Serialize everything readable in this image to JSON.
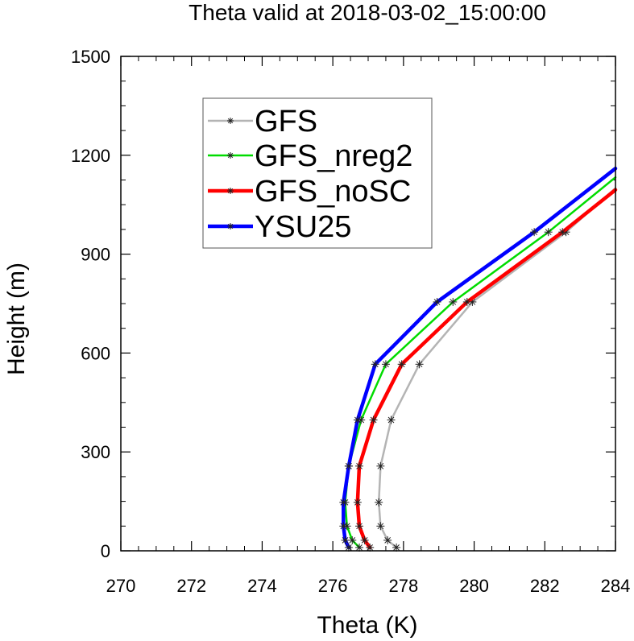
{
  "chart_data": {
    "type": "line",
    "title": "Theta valid at 2018-03-02_15:00:00",
    "xlabel": "Theta (K)",
    "ylabel": "Height (m)",
    "xlim": [
      270,
      284
    ],
    "ylim": [
      0,
      1500
    ],
    "xticks": [
      270,
      272,
      274,
      276,
      278,
      280,
      282,
      284
    ],
    "yticks": [
      0,
      300,
      600,
      900,
      1200,
      1500
    ],
    "legend_position": "upper-left",
    "series": [
      {
        "name": "GFS",
        "color": "#b4b4b4",
        "marker": "asterisk",
        "points": [
          [
            277.8,
            10
          ],
          [
            277.55,
            32
          ],
          [
            277.35,
            75
          ],
          [
            277.3,
            147
          ],
          [
            277.35,
            257
          ],
          [
            277.65,
            397
          ],
          [
            278.45,
            566
          ],
          [
            279.95,
            755
          ],
          [
            282.6,
            967
          ],
          [
            284.0,
            1100
          ]
        ]
      },
      {
        "name": "GFS_nreg2",
        "color": "#00dc00",
        "marker": "asterisk",
        "points": [
          [
            276.75,
            10
          ],
          [
            276.55,
            32
          ],
          [
            276.4,
            75
          ],
          [
            276.35,
            147
          ],
          [
            276.45,
            257
          ],
          [
            276.8,
            397
          ],
          [
            277.5,
            566
          ],
          [
            279.4,
            755
          ],
          [
            282.1,
            967
          ],
          [
            284.0,
            1133
          ]
        ]
      },
      {
        "name": "GFS_noSC",
        "color": "#ff0000",
        "marker": "asterisk",
        "points": [
          [
            277.05,
            10
          ],
          [
            276.9,
            32
          ],
          [
            276.75,
            75
          ],
          [
            276.7,
            147
          ],
          [
            276.75,
            257
          ],
          [
            277.15,
            397
          ],
          [
            277.95,
            566
          ],
          [
            279.8,
            755
          ],
          [
            282.5,
            967
          ],
          [
            284.0,
            1095
          ]
        ]
      },
      {
        "name": "YSU25",
        "color": "#0000ff",
        "marker": "asterisk",
        "points": [
          [
            276.45,
            10
          ],
          [
            276.35,
            32
          ],
          [
            276.3,
            75
          ],
          [
            276.3,
            147
          ],
          [
            276.45,
            257
          ],
          [
            276.7,
            397
          ],
          [
            277.2,
            566
          ],
          [
            278.95,
            755
          ],
          [
            281.7,
            967
          ],
          [
            284.0,
            1160
          ]
        ]
      }
    ]
  }
}
